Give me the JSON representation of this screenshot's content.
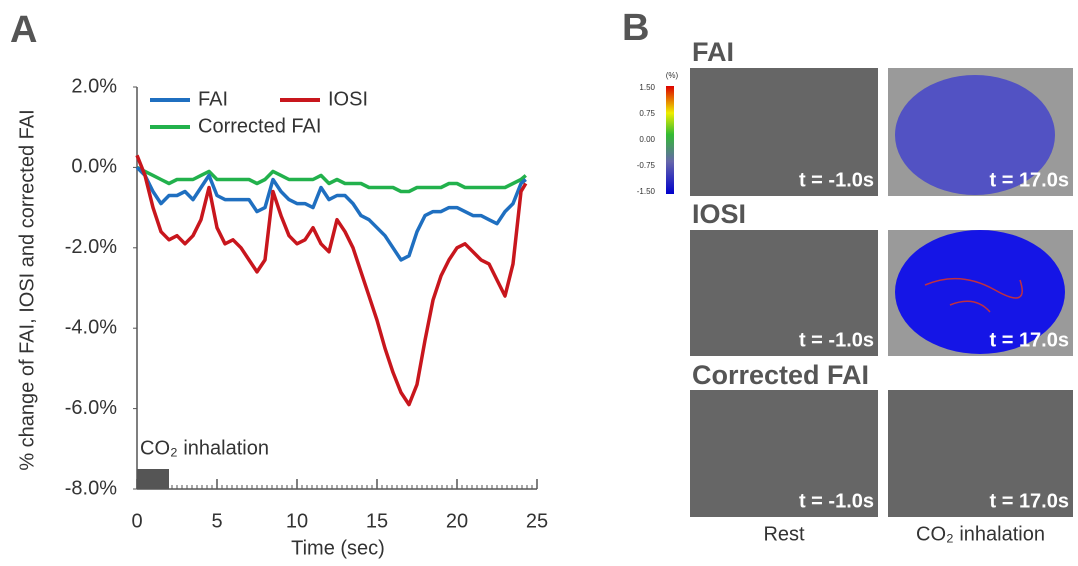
{
  "chart_data": {
    "type": "line",
    "panel_label": "A",
    "y_label": "% change of FAI, IOSI and corrected FAI",
    "x_label": "Time (sec)",
    "annotation": "CO₂ inhalation",
    "inhalation_span": [
      0,
      2
    ],
    "xlim": [
      0,
      25
    ],
    "xticks": [
      0,
      5,
      10,
      15,
      20,
      25
    ],
    "ylim": [
      -8,
      2
    ],
    "yticks": [
      {
        "value": 2,
        "label": "2.0%"
      },
      {
        "value": 0,
        "label": "0.0%"
      },
      {
        "value": -2,
        "label": "-2.0%"
      },
      {
        "value": -4,
        "label": "-4.0%"
      },
      {
        "value": -6,
        "label": "-6.0%"
      },
      {
        "value": -8,
        "label": "-8.0%"
      }
    ],
    "x": [
      0,
      0.5,
      1,
      1.5,
      2,
      2.5,
      3,
      3.5,
      4,
      4.5,
      5,
      5.5,
      6,
      6.5,
      7,
      7.5,
      8,
      8.5,
      9,
      9.5,
      10,
      10.5,
      11,
      11.5,
      12,
      12.5,
      13,
      13.5,
      14,
      14.5,
      15,
      15.5,
      16,
      16.5,
      17,
      17.5,
      18,
      18.5,
      19,
      19.5,
      20,
      20.5,
      21,
      21.5,
      22,
      22.5,
      23,
      23.5,
      24,
      24.3
    ],
    "series": [
      {
        "name": "FAI",
        "color": "#1f6fc0",
        "values": [
          0,
          -0.2,
          -0.6,
          -0.9,
          -0.7,
          -0.7,
          -0.6,
          -0.8,
          -0.5,
          -0.2,
          -0.7,
          -0.8,
          -0.8,
          -0.8,
          -0.8,
          -1.1,
          -1.0,
          -0.3,
          -0.6,
          -0.8,
          -0.9,
          -0.9,
          -1.0,
          -0.5,
          -0.8,
          -0.7,
          -0.7,
          -0.9,
          -1.2,
          -1.3,
          -1.5,
          -1.7,
          -2.0,
          -2.3,
          -2.2,
          -1.6,
          -1.2,
          -1.1,
          -1.1,
          -1.0,
          -1.0,
          -1.1,
          -1.2,
          -1.2,
          -1.3,
          -1.4,
          -1.1,
          -0.9,
          -0.4,
          -0.3
        ]
      },
      {
        "name": "IOSI",
        "color": "#c8161d",
        "values": [
          0.3,
          -0.2,
          -1.0,
          -1.6,
          -1.8,
          -1.7,
          -1.9,
          -1.7,
          -1.3,
          -0.5,
          -1.5,
          -1.9,
          -1.8,
          -2.0,
          -2.3,
          -2.6,
          -2.3,
          -0.6,
          -1.2,
          -1.7,
          -1.9,
          -1.8,
          -1.5,
          -1.9,
          -2.1,
          -1.3,
          -1.6,
          -2.0,
          -2.6,
          -3.2,
          -3.8,
          -4.5,
          -5.1,
          -5.6,
          -5.9,
          -5.4,
          -4.3,
          -3.3,
          -2.7,
          -2.3,
          -2.0,
          -1.9,
          -2.1,
          -2.3,
          -2.4,
          -2.8,
          -3.2,
          -2.4,
          -0.6,
          -0.4
        ]
      },
      {
        "name": "Corrected FAI",
        "color": "#22b14c",
        "values": [
          0,
          -0.1,
          -0.2,
          -0.3,
          -0.4,
          -0.3,
          -0.3,
          -0.3,
          -0.2,
          -0.1,
          -0.3,
          -0.3,
          -0.3,
          -0.3,
          -0.3,
          -0.4,
          -0.3,
          -0.1,
          -0.2,
          -0.3,
          -0.3,
          -0.3,
          -0.3,
          -0.2,
          -0.4,
          -0.3,
          -0.4,
          -0.4,
          -0.4,
          -0.5,
          -0.5,
          -0.5,
          -0.5,
          -0.6,
          -0.6,
          -0.5,
          -0.5,
          -0.5,
          -0.5,
          -0.4,
          -0.4,
          -0.5,
          -0.5,
          -0.5,
          -0.5,
          -0.5,
          -0.5,
          -0.4,
          -0.3,
          -0.2
        ]
      }
    ]
  },
  "panel_b": {
    "label": "B",
    "colorbar": {
      "unit": "(%)",
      "ticks": [
        "1.50",
        "0.75",
        "0.00",
        "-0.75",
        "-1.50"
      ]
    },
    "columns": [
      "Rest",
      "CO₂ inhalation"
    ],
    "rows": [
      {
        "title": "FAI",
        "times": [
          "t = -1.0s",
          "t = 17.0s"
        ]
      },
      {
        "title": "IOSI",
        "times": [
          "t = -1.0s",
          "t = 17.0s"
        ]
      },
      {
        "title": "Corrected FAI",
        "times": [
          "t = -1.0s",
          "t = 17.0s"
        ]
      }
    ]
  }
}
